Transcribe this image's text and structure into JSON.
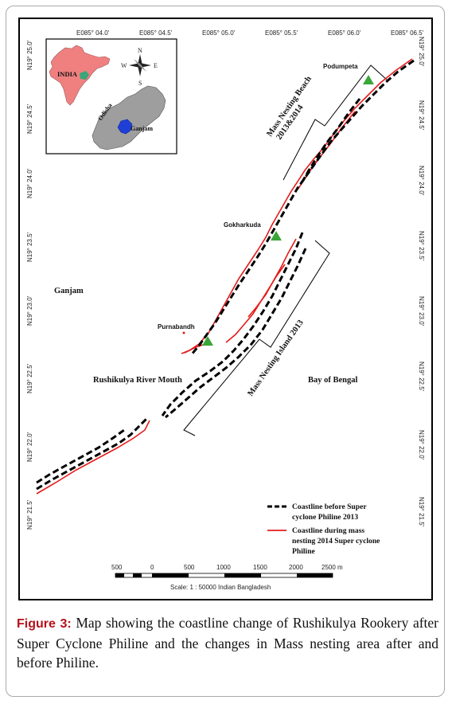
{
  "map": {
    "top_ticks": [
      "E085° 04.0'",
      "E085° 04.5'",
      "E085° 05.0'",
      "E085° 05.5'",
      "E085° 06.0'",
      "E085° 06.5'"
    ],
    "left_ticks": [
      "N19° 25.0'",
      "N19° 24.5'",
      "N19° 24.0'",
      "N19° 23.5'",
      "N19° 23.0'",
      "N19° 22.5'",
      "N19° 22.0'",
      "N19° 21.5'"
    ],
    "right_ticks": [
      "N19° 25.0'",
      "N19° 24.5'",
      "N19° 24.0'",
      "N19° 23.5'",
      "N19° 23.0'",
      "N19° 22.5'",
      "N19° 22.0'",
      "N19° 21.5'"
    ],
    "places": {
      "podumpeta": "Podumpeta",
      "gokharkuda": "Gokharkuda",
      "purnabandh": "Purnabandh",
      "ganjam": "Ganjam",
      "river_mouth": "Rushikulya River Mouth",
      "bay": "Bay of Bengal",
      "beach_line1": "Mass Nesting Beach",
      "beach_line2": "2013&2014",
      "island": "Mass Nesting Island 2013"
    },
    "inset": {
      "india": "INDIA",
      "odisha": "Odisha",
      "ganjam": "Ganjam",
      "compass": {
        "n": "N",
        "s": "S",
        "e": "E",
        "w": "W"
      }
    },
    "legend": {
      "before_line1": "Coastline before Super",
      "before_line2": "cyclone Philine 2013",
      "during_line1": "Coastline during mass",
      "during_line2": "nesting 2014 Super cyclone",
      "during_line3": "Philine"
    },
    "scalebar": {
      "labels": [
        "500",
        "0",
        "500",
        "1000",
        "1500",
        "2000",
        "2500 m"
      ],
      "text": "Scale: 1 : 50000  Indian Bangladesh"
    },
    "colors": {
      "before_coast": "#000000",
      "during_coast": "#e41b1b",
      "turtle_marker": "#3aa63a",
      "india_fill": "#f08080",
      "ganjam_fill": "#1f3fd6"
    }
  },
  "caption": {
    "label": "Figure 3:",
    "text": " Map showing the coastline change of Rushikulya Rookery after Super Cyclone Philine and the changes in Mass nesting area after and before Philine."
  }
}
